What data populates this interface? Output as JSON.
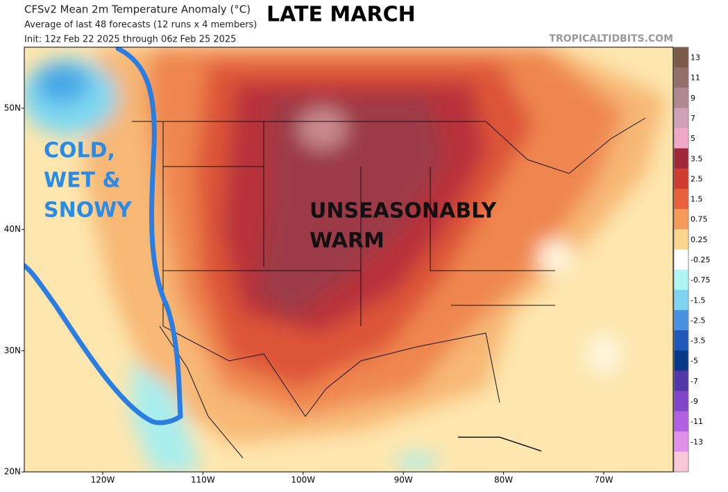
{
  "header": {
    "title": "CFSv2 Mean 2m Temperature Anomaly (°C)",
    "subtitle": "Average of last 48 forecasts (12 runs x 4 members)",
    "init": "Init: 12z Feb 22 2025 through 06z Feb 25 2025",
    "headline": "LATE MARCH",
    "source": "TROPICALTIDBITS.COM"
  },
  "annotations": {
    "cold": [
      "COLD,",
      "WET &",
      "SNOWY"
    ],
    "warm": [
      "UNSEASONABLY",
      "WARM"
    ]
  },
  "map": {
    "lat_labels": [
      "50N",
      "40N",
      "30N",
      "20N"
    ],
    "lon_labels": [
      "120W",
      "110W",
      "100W",
      "90W",
      "80W",
      "70W"
    ]
  },
  "colorbar": {
    "labels": [
      "13",
      "11",
      "9",
      "7",
      "5",
      "3.5",
      "2.5",
      "1.5",
      "0.75",
      "0.25",
      "-0.25",
      "-0.75",
      "-1.5",
      "-2.5",
      "-3.5",
      "-5",
      "-7",
      "-9",
      "-11",
      "-13"
    ],
    "colors": [
      "#7a5a48",
      "#94706a",
      "#b08890",
      "#d0a0b8",
      "#f0a8c8",
      "#a02838",
      "#d03c30",
      "#e8603c",
      "#f59a58",
      "#fbd48e",
      "#ffffff",
      "#b0f4f4",
      "#80d4f0",
      "#4a90e0",
      "#2058b8",
      "#0a3888",
      "#5038a8",
      "#8048c8",
      "#b060e0",
      "#e090e8",
      "#f8c8d8"
    ]
  }
}
